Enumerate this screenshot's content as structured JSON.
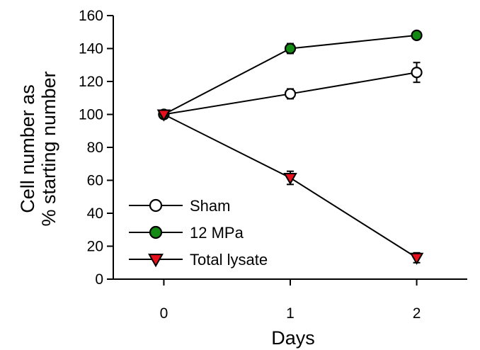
{
  "chart_data": {
    "type": "line",
    "title": "",
    "xlabel": "Days",
    "ylabel_lines": [
      "Cell number as",
      "% starting number"
    ],
    "x": [
      0,
      1,
      2
    ],
    "x_ticks": [
      "0",
      "1",
      "2"
    ],
    "xlim": [
      -0.4,
      2.4
    ],
    "ylim": [
      0,
      160
    ],
    "y_ticks": [
      "0",
      "20",
      "40",
      "60",
      "80",
      "100",
      "120",
      "140",
      "160"
    ],
    "grid": false,
    "legend_position": "bottom-left",
    "series": [
      {
        "name": "Sham",
        "marker": "circle",
        "fill": "#ffffff",
        "values": [
          100,
          112.5,
          125.5
        ],
        "errors": [
          0,
          3,
          6
        ]
      },
      {
        "name": "12 MPa",
        "marker": "circle",
        "fill": "#138a13",
        "values": [
          100,
          140,
          148
        ],
        "errors": [
          0,
          3,
          1.5
        ]
      },
      {
        "name": "Total lysate",
        "marker": "triangle-down",
        "fill": "#e8101c",
        "values": [
          100,
          61.5,
          13
        ],
        "errors": [
          0,
          4,
          3
        ]
      }
    ]
  }
}
